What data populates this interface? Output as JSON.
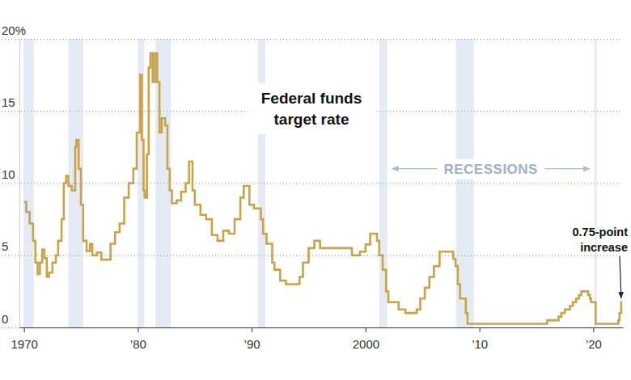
{
  "chart_data": {
    "type": "line",
    "title": "Federal funds target rate",
    "color": "#c9a24a",
    "line_style": "step",
    "grid": true,
    "xlim": [
      1969.6,
      2022.6
    ],
    "xticks": [
      1970,
      {
        "value": 1980,
        "label": "’80"
      },
      {
        "value": 1990,
        "label": "’90"
      },
      2000,
      {
        "value": 2010,
        "label": "’10"
      },
      {
        "value": 2020,
        "label": "’20"
      }
    ],
    "ylim": [
      0,
      20
    ],
    "yticks": [
      0,
      5,
      10,
      15,
      {
        "value": 20,
        "label": "20%"
      }
    ],
    "x": [
      1970.0,
      1970.2,
      1970.5,
      1970.8,
      1971.0,
      1971.2,
      1971.4,
      1971.6,
      1971.8,
      1972.0,
      1972.2,
      1972.5,
      1972.8,
      1973.0,
      1973.3,
      1973.5,
      1973.7,
      1973.9,
      1974.2,
      1974.5,
      1974.6,
      1974.8,
      1975.0,
      1975.2,
      1975.5,
      1975.8,
      1976.0,
      1976.4,
      1976.8,
      1977.2,
      1977.6,
      1978.0,
      1978.4,
      1978.8,
      1979.2,
      1979.6,
      1979.9,
      1980.2,
      1980.35,
      1980.5,
      1980.6,
      1980.8,
      1980.95,
      1981.1,
      1981.3,
      1981.5,
      1981.7,
      1981.9,
      1982.1,
      1982.4,
      1982.6,
      1982.8,
      1983.0,
      1983.4,
      1983.8,
      1984.2,
      1984.5,
      1984.8,
      1985.0,
      1985.5,
      1986.0,
      1986.5,
      1987.0,
      1987.5,
      1988.0,
      1988.5,
      1989.0,
      1989.3,
      1989.8,
      1990.2,
      1990.8,
      1991.0,
      1991.3,
      1991.8,
      1992.0,
      1992.5,
      1993.0,
      1994.2,
      1994.5,
      1995.0,
      1995.5,
      1996.0,
      1998.8,
      1999.5,
      2000.0,
      2000.4,
      2001.0,
      2001.2,
      2001.5,
      2001.8,
      2002.0,
      2002.9,
      2003.5,
      2004.5,
      2004.8,
      2005.2,
      2005.6,
      2006.0,
      2006.5,
      2007.7,
      2007.9,
      2008.1,
      2008.3,
      2008.8,
      2008.95,
      2015.95,
      2016.95,
      2017.2,
      2017.5,
      2017.95,
      2018.2,
      2018.5,
      2018.75,
      2018.95,
      2019.55,
      2019.7,
      2019.8,
      2020.2,
      2022.2,
      2022.3,
      2022.45,
      2022.55
    ],
    "values": [
      8.7,
      8.0,
      7.2,
      6.0,
      4.5,
      3.7,
      4.5,
      5.4,
      4.8,
      3.5,
      3.8,
      4.5,
      5.0,
      6.0,
      7.5,
      10.0,
      10.5,
      9.8,
      9.5,
      12.5,
      13.0,
      11.0,
      8.5,
      6.0,
      5.3,
      5.8,
      5.0,
      5.2,
      4.7,
      4.7,
      5.8,
      6.6,
      7.2,
      9.0,
      10.0,
      11.0,
      13.5,
      17.5,
      13.0,
      9.5,
      9.0,
      12.0,
      18.0,
      19.0,
      17.0,
      19.0,
      17.0,
      13.5,
      14.5,
      14.0,
      11.0,
      9.5,
      8.6,
      8.8,
      9.4,
      10.0,
      11.5,
      9.5,
      8.5,
      7.8,
      7.5,
      6.4,
      6.0,
      6.7,
      6.5,
      7.5,
      9.0,
      9.8,
      8.5,
      8.25,
      7.5,
      6.5,
      5.8,
      4.5,
      4.0,
      3.25,
      3.0,
      3.5,
      4.5,
      5.5,
      6.0,
      5.5,
      5.0,
      5.25,
      5.75,
      6.5,
      6.0,
      5.0,
      4.0,
      2.5,
      1.75,
      1.25,
      1.0,
      1.25,
      2.0,
      2.75,
      3.5,
      4.25,
      5.25,
      4.75,
      4.25,
      3.0,
      2.0,
      1.0,
      0.25,
      0.5,
      0.75,
      1.0,
      1.25,
      1.5,
      1.75,
      2.0,
      2.25,
      2.5,
      2.25,
      2.0,
      1.75,
      0.25,
      0.5,
      1.0,
      1.75,
      1.75
    ],
    "recessions": {
      "label": "RECESSIONS",
      "periods": [
        [
          1969.95,
          1970.85
        ],
        [
          1973.9,
          1975.2
        ],
        [
          1980.0,
          1980.55
        ],
        [
          1981.55,
          1982.9
        ],
        [
          1990.55,
          1991.2
        ],
        [
          2001.2,
          2001.9
        ],
        [
          2007.95,
          2009.5
        ],
        [
          2020.1,
          2020.3
        ]
      ]
    },
    "annotations": [
      {
        "text": "0.75-point increase",
        "x": 2022.45,
        "y": 1.75
      }
    ]
  }
}
